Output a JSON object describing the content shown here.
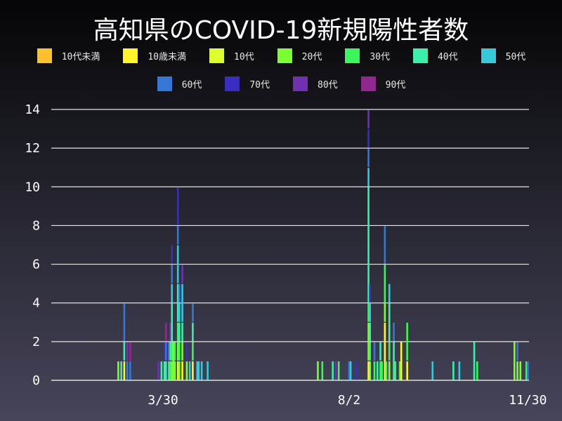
{
  "chart_data": {
    "type": "bar",
    "stacked": true,
    "title": "高知県のCOVID-19新規陽性者数",
    "xlabel": "",
    "ylabel": "",
    "ylim": [
      0,
      14
    ],
    "yticks": [
      "0",
      "2",
      "4",
      "6",
      "8",
      "10",
      "12",
      "14"
    ],
    "xticks": [
      {
        "date": "2020-03-30",
        "label": "3/30"
      },
      {
        "date": "2020-08-02",
        "label": "8/2"
      },
      {
        "date": "2020-11-30",
        "label": "11/30"
      }
    ],
    "grid": true,
    "legend_placement": "top",
    "series": [
      {
        "name": "10代未満",
        "color": "#ffc02a"
      },
      {
        "name": "10歳未満",
        "color": "#fff52a"
      },
      {
        "name": "10代",
        "color": "#daff2a"
      },
      {
        "name": "20代",
        "color": "#7cff32"
      },
      {
        "name": "30代",
        "color": "#3cf55a"
      },
      {
        "name": "40代",
        "color": "#3ceeaa"
      },
      {
        "name": "50代",
        "color": "#36c8dc"
      },
      {
        "name": "60代",
        "color": "#3676d4"
      },
      {
        "name": "70代",
        "color": "#3a2ec0"
      },
      {
        "name": "80代",
        "color": "#7030b0"
      },
      {
        "name": "90代",
        "color": "#902890"
      }
    ],
    "bars": [
      {
        "date": "2020-02-29",
        "v": [
          0,
          0,
          0,
          1,
          0,
          0,
          0,
          0,
          0,
          0,
          0
        ]
      },
      {
        "date": "2020-03-02",
        "v": [
          0,
          0,
          0,
          0,
          0,
          1,
          0,
          0,
          0,
          0,
          0
        ]
      },
      {
        "date": "2020-03-04",
        "v": [
          0,
          1,
          0,
          0,
          0,
          1,
          0,
          2,
          0,
          0,
          0
        ]
      },
      {
        "date": "2020-03-06",
        "v": [
          0,
          0,
          0,
          0,
          0,
          0,
          0,
          1,
          0,
          1,
          0
        ]
      },
      {
        "date": "2020-03-08",
        "v": [
          0,
          0,
          0,
          0,
          0,
          0,
          0,
          1,
          0,
          0,
          1
        ]
      },
      {
        "date": "2020-03-27",
        "v": [
          0,
          0,
          0,
          0,
          0,
          0,
          0,
          0,
          0,
          1,
          0
        ]
      },
      {
        "date": "2020-03-29",
        "v": [
          0,
          0,
          0,
          0,
          0,
          1,
          0,
          0,
          0,
          0,
          0
        ]
      },
      {
        "date": "2020-03-31",
        "v": [
          0,
          0,
          0,
          0,
          0,
          1,
          0,
          0,
          1,
          0,
          0
        ]
      },
      {
        "date": "2020-04-01",
        "v": [
          0,
          0,
          0,
          0,
          0,
          1,
          0,
          1,
          0,
          0,
          1
        ]
      },
      {
        "date": "2020-04-03",
        "v": [
          0,
          0,
          0,
          0,
          0,
          1,
          0,
          1,
          0,
          0,
          0
        ]
      },
      {
        "date": "2020-04-04",
        "v": [
          0,
          0,
          0,
          0,
          1,
          1,
          0,
          0,
          0,
          1,
          0
        ]
      },
      {
        "date": "2020-04-05",
        "v": [
          0,
          0,
          0,
          1,
          1,
          2,
          1,
          1,
          1,
          0,
          0
        ]
      },
      {
        "date": "2020-04-06",
        "v": [
          0,
          0,
          0,
          2,
          0,
          0,
          0,
          0,
          0,
          0,
          0
        ]
      },
      {
        "date": "2020-04-07",
        "v": [
          0,
          0,
          0,
          1,
          1,
          0,
          0,
          0,
          0,
          0,
          0
        ]
      },
      {
        "date": "2020-04-09",
        "v": [
          0,
          1,
          0,
          1,
          1,
          2,
          2,
          1,
          2,
          0,
          0
        ]
      },
      {
        "date": "2020-04-10",
        "v": [
          0,
          0,
          0,
          1,
          1,
          1,
          1,
          1,
          0,
          0,
          0
        ]
      },
      {
        "date": "2020-04-12",
        "v": [
          0,
          1,
          0,
          1,
          0,
          1,
          2,
          0,
          0,
          1,
          0
        ]
      },
      {
        "date": "2020-04-15",
        "v": [
          0,
          0,
          0,
          1,
          0,
          0,
          0,
          0,
          1,
          0,
          0
        ]
      },
      {
        "date": "2020-04-17",
        "v": [
          0,
          0,
          0,
          0,
          0,
          0,
          1,
          0,
          0,
          0,
          0
        ]
      },
      {
        "date": "2020-04-19",
        "v": [
          0,
          1,
          0,
          0,
          1,
          1,
          0,
          1,
          0,
          0,
          0
        ]
      },
      {
        "date": "2020-04-22",
        "v": [
          0,
          0,
          0,
          0,
          0,
          0,
          1,
          0,
          0,
          0,
          0
        ]
      },
      {
        "date": "2020-04-23",
        "v": [
          0,
          0,
          0,
          0,
          0,
          0,
          1,
          0,
          0,
          0,
          0
        ]
      },
      {
        "date": "2020-04-25",
        "v": [
          0,
          0,
          0,
          0,
          0,
          0,
          1,
          0,
          0,
          0,
          0
        ]
      },
      {
        "date": "2020-04-29",
        "v": [
          0,
          0,
          0,
          0,
          0,
          0,
          1,
          0,
          0,
          0,
          0
        ]
      },
      {
        "date": "2020-07-12",
        "v": [
          0,
          0,
          0,
          1,
          0,
          0,
          0,
          0,
          0,
          0,
          0
        ]
      },
      {
        "date": "2020-07-15",
        "v": [
          0,
          0,
          0,
          0,
          1,
          0,
          0,
          0,
          0,
          0,
          0
        ]
      },
      {
        "date": "2020-07-22",
        "v": [
          0,
          0,
          0,
          0,
          0,
          1,
          0,
          0,
          0,
          0,
          0
        ]
      },
      {
        "date": "2020-07-24",
        "v": [
          0,
          0,
          0,
          0,
          0,
          0,
          0,
          0,
          0,
          1,
          0
        ]
      },
      {
        "date": "2020-07-26",
        "v": [
          0,
          0,
          0,
          0,
          1,
          0,
          0,
          0,
          0,
          0,
          0
        ]
      },
      {
        "date": "2020-08-02",
        "v": [
          0,
          0,
          0,
          0,
          0,
          0,
          0,
          1,
          0,
          0,
          0
        ]
      },
      {
        "date": "2020-08-03",
        "v": [
          0,
          0,
          0,
          0,
          0,
          0,
          1,
          0,
          0,
          0,
          0
        ]
      },
      {
        "date": "2020-08-07",
        "v": [
          0,
          0,
          0,
          0,
          0,
          0,
          0,
          0,
          1,
          0,
          0
        ]
      },
      {
        "date": "2020-08-15",
        "v": [
          0,
          1,
          0,
          2,
          1,
          6,
          1,
          1,
          1,
          1,
          0
        ]
      },
      {
        "date": "2020-08-16",
        "v": [
          0,
          0,
          0,
          1,
          1,
          1,
          1,
          0,
          1,
          0,
          0
        ]
      },
      {
        "date": "2020-08-19",
        "v": [
          0,
          0,
          0,
          0,
          1,
          0,
          0,
          1,
          0,
          0,
          0
        ]
      },
      {
        "date": "2020-08-21",
        "v": [
          0,
          0,
          0,
          0,
          0,
          1,
          0,
          0,
          0,
          0,
          0
        ]
      },
      {
        "date": "2020-08-23",
        "v": [
          0,
          0,
          0,
          0,
          1,
          1,
          0,
          0,
          0,
          0,
          0
        ]
      },
      {
        "date": "2020-08-24",
        "v": [
          0,
          0,
          0,
          0,
          1,
          0,
          0,
          0,
          0,
          0,
          0
        ]
      },
      {
        "date": "2020-08-26",
        "v": [
          0,
          3,
          0,
          1,
          2,
          0,
          0,
          2,
          0,
          0,
          0
        ]
      },
      {
        "date": "2020-08-27",
        "v": [
          0,
          0,
          0,
          0,
          1,
          0,
          0,
          0,
          0,
          0,
          0
        ]
      },
      {
        "date": "2020-08-29",
        "v": [
          0,
          0,
          0,
          1,
          1,
          2,
          1,
          0,
          0,
          0,
          0
        ]
      },
      {
        "date": "2020-09-01",
        "v": [
          0,
          0,
          0,
          0,
          0,
          2,
          0,
          1,
          0,
          0,
          0
        ]
      },
      {
        "date": "2020-09-02",
        "v": [
          0,
          0,
          0,
          0,
          1,
          0,
          0,
          0,
          0,
          0,
          0
        ]
      },
      {
        "date": "2020-09-05",
        "v": [
          0,
          0,
          0,
          0,
          1,
          0,
          0,
          0,
          0,
          0,
          0
        ]
      },
      {
        "date": "2020-09-06",
        "v": [
          0,
          2,
          0,
          0,
          0,
          0,
          0,
          0,
          0,
          0,
          0
        ]
      },
      {
        "date": "2020-09-10",
        "v": [
          0,
          1,
          0,
          0,
          2,
          0,
          0,
          0,
          0,
          0,
          0
        ]
      },
      {
        "date": "2020-09-27",
        "v": [
          0,
          0,
          0,
          0,
          0,
          0,
          1,
          0,
          0,
          0,
          0
        ]
      },
      {
        "date": "2020-10-11",
        "v": [
          0,
          0,
          0,
          0,
          0,
          1,
          0,
          0,
          0,
          0,
          0
        ]
      },
      {
        "date": "2020-10-15",
        "v": [
          0,
          0,
          0,
          0,
          0,
          0,
          1,
          0,
          0,
          0,
          0
        ]
      },
      {
        "date": "2020-10-25",
        "v": [
          0,
          0,
          0,
          0,
          0,
          2,
          0,
          0,
          0,
          0,
          0
        ]
      },
      {
        "date": "2020-10-27",
        "v": [
          0,
          0,
          0,
          0,
          1,
          0,
          0,
          0,
          0,
          0,
          0
        ]
      },
      {
        "date": "2020-11-21",
        "v": [
          0,
          0,
          0,
          2,
          0,
          0,
          0,
          0,
          0,
          0,
          0
        ]
      },
      {
        "date": "2020-11-23",
        "v": [
          0,
          0,
          0,
          1,
          0,
          0,
          0,
          1,
          0,
          0,
          0
        ]
      },
      {
        "date": "2020-11-25",
        "v": [
          0,
          0,
          0,
          1,
          0,
          0,
          0,
          0,
          0,
          0,
          0
        ]
      },
      {
        "date": "2020-11-29",
        "v": [
          0,
          0,
          0,
          0,
          1,
          0,
          0,
          0,
          0,
          0,
          0
        ]
      },
      {
        "date": "2020-11-30",
        "v": [
          0,
          0,
          0,
          0,
          0,
          0,
          0,
          1,
          0,
          0,
          0
        ]
      }
    ]
  }
}
